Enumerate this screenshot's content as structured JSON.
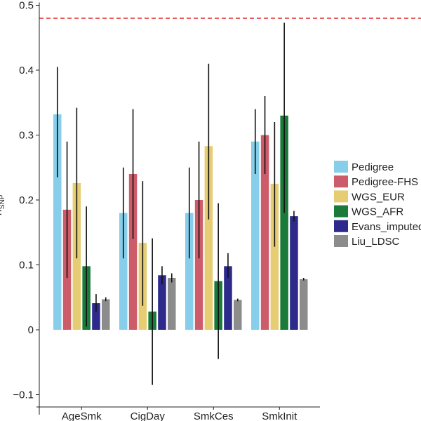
{
  "chart_data": {
    "type": "bar",
    "title": "",
    "xlabel": "",
    "ylabel": "h",
    "ylabel_subscript": "SNP",
    "ylim": [
      -0.12,
      0.5
    ],
    "yticks": [
      -0.1,
      0,
      0.1,
      0.2,
      0.3,
      0.4,
      0.5
    ],
    "ytick_labels": [
      "−0.1",
      "0",
      "0.1",
      "0.2",
      "0.3",
      "0.4",
      "0.5"
    ],
    "reference_line": 0.48,
    "categories": [
      "AgeSmk",
      "CigDay",
      "SmkCes",
      "SmkInit"
    ],
    "series": [
      {
        "name": "Pedigree",
        "color": "#87CEEB",
        "values": [
          0.332,
          0.18,
          0.18,
          0.29
        ],
        "err_low": [
          0.235,
          0.11,
          0.11,
          0.24
        ],
        "err_high": [
          0.405,
          0.25,
          0.25,
          0.34
        ]
      },
      {
        "name": "Pedigree-FHS",
        "color": "#CD5C6A",
        "values": [
          0.185,
          0.24,
          0.2,
          0.3
        ],
        "err_low": [
          0.08,
          0.14,
          0.11,
          0.24
        ],
        "err_high": [
          0.29,
          0.34,
          0.29,
          0.36
        ]
      },
      {
        "name": "WGS_EUR",
        "color": "#E6CD73",
        "values": [
          0.226,
          0.134,
          0.283,
          0.225
        ],
        "err_low": [
          0.11,
          0.037,
          0.17,
          0.128
        ],
        "err_high": [
          0.342,
          0.229,
          0.41,
          0.32
        ]
      },
      {
        "name": "WGS_AFR",
        "color": "#1A7A3A",
        "values": [
          0.098,
          0.028,
          0.075,
          0.33
        ],
        "err_low": [
          0.005,
          -0.085,
          -0.045,
          0.18
        ],
        "err_high": [
          0.19,
          0.141,
          0.195,
          0.473
        ]
      },
      {
        "name": "Evans_imputed",
        "color": "#2E2A8C",
        "values": [
          0.041,
          0.084,
          0.098,
          0.175
        ],
        "err_low": [
          0.028,
          0.07,
          0.08,
          0.167
        ],
        "err_high": [
          0.055,
          0.098,
          0.118,
          0.183
        ]
      },
      {
        "name": "Liu_LDSC",
        "color": "#8C8C8C",
        "values": [
          0.047,
          0.08,
          0.046,
          0.078
        ],
        "err_low": [
          0.044,
          0.073,
          0.044,
          0.076
        ],
        "err_high": [
          0.05,
          0.087,
          0.048,
          0.08
        ]
      }
    ],
    "legend": {
      "labels": [
        "Pedigree",
        "Pedigree-FHS",
        "WGS_EUR",
        "WGS_AFR",
        "Evans_imputed",
        "Liu_LDSC"
      ],
      "position": "right"
    },
    "colors": {
      "reference_line": "#DD2C2C",
      "error_bar": "#111111",
      "axis": "#222222"
    }
  }
}
